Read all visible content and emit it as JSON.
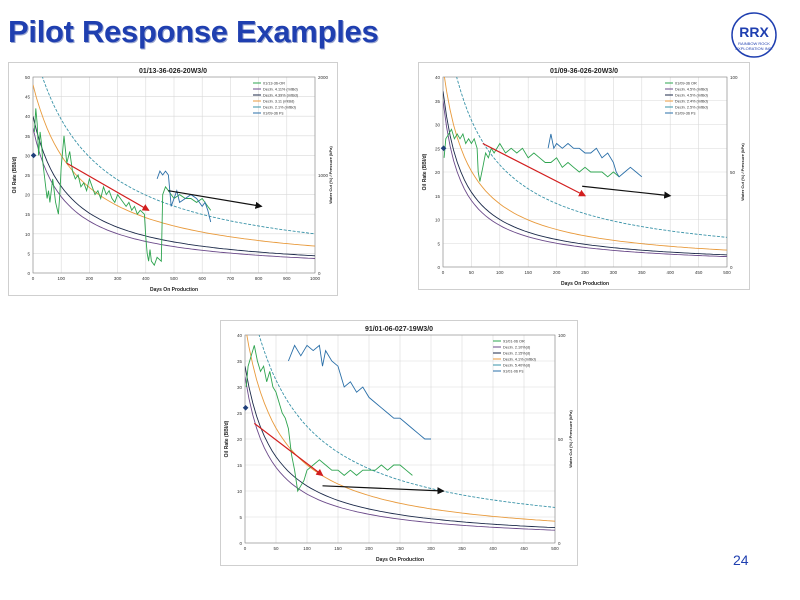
{
  "slide": {
    "title": "Pilot Response Examples",
    "page_number": "24",
    "logo": {
      "line1": "RRX",
      "line2": "RAINBOW ROCK",
      "line3": "EXPLORATION INC."
    }
  },
  "colors": {
    "title": "#1f3fb0",
    "oil_rate": "#2ea44f",
    "pressure": "#2a6fa8",
    "decline_navy": "#1c2a4a",
    "decline_purple": "#6b4a8a",
    "decline_orange": "#e89a3c",
    "decline_teal": "#3a93a8",
    "arrow_red": "#d21e1e",
    "arrow_black": "#111111"
  },
  "chart_data": [
    {
      "type": "line",
      "title": "01/13-36-026-20W3/0",
      "xlabel": "Days On Production",
      "ylabel": "Oil Rate (BBl/d)",
      "y2label": "Water Cut (%) / Pressure (kPa)",
      "xlim": [
        0,
        1000
      ],
      "ylim": [
        0,
        50
      ],
      "y2lim": [
        0,
        2000
      ],
      "xticks": [
        "0",
        "100",
        "200",
        "300",
        "400",
        "500",
        "600",
        "700",
        "800",
        "900",
        "1000"
      ],
      "yticks": [
        "0",
        "5",
        "10",
        "15",
        "20",
        "25",
        "30",
        "35",
        "40",
        "45",
        "50"
      ],
      "y2ticks": [
        "0",
        "1000",
        "2000"
      ],
      "legend": [
        "01/13-36-OR",
        "Decln. 4.11% (mtBd)",
        "Decln. 4.39% (mtBd)",
        "Decln. 3.11 (mtBd)",
        "Decln. 2.1% (mtBd)",
        "01/09-36 Ps"
      ],
      "decline_curves": [
        {
          "color": "decline_purple",
          "q0": 37,
          "b": 0.03
        },
        {
          "color": "decline_navy",
          "q0": 40,
          "b": 0.027
        },
        {
          "color": "decline_orange",
          "q0": 48,
          "b": 0.02
        },
        {
          "color": "decline_teal",
          "q0": 58,
          "b": 0.016
        }
      ],
      "oil_rate": [
        [
          5,
          36
        ],
        [
          10,
          42
        ],
        [
          15,
          38
        ],
        [
          20,
          30
        ],
        [
          25,
          36
        ],
        [
          30,
          33
        ],
        [
          35,
          28
        ],
        [
          40,
          25
        ],
        [
          45,
          22
        ],
        [
          50,
          19
        ],
        [
          55,
          21
        ],
        [
          60,
          18
        ],
        [
          70,
          24
        ],
        [
          80,
          18
        ],
        [
          90,
          15
        ],
        [
          95,
          20
        ],
        [
          100,
          27
        ],
        [
          110,
          35
        ],
        [
          120,
          28
        ],
        [
          130,
          31
        ],
        [
          140,
          26
        ],
        [
          150,
          24
        ],
        [
          160,
          25
        ],
        [
          170,
          22
        ],
        [
          180,
          23
        ],
        [
          190,
          21
        ],
        [
          200,
          24
        ],
        [
          210,
          22
        ],
        [
          220,
          20
        ],
        [
          230,
          21
        ],
        [
          240,
          19
        ],
        [
          250,
          22
        ],
        [
          260,
          20
        ],
        [
          270,
          21
        ],
        [
          280,
          19
        ],
        [
          290,
          18
        ],
        [
          300,
          20
        ],
        [
          310,
          19
        ],
        [
          320,
          18
        ],
        [
          330,
          17
        ],
        [
          340,
          18
        ],
        [
          350,
          16
        ],
        [
          360,
          17
        ],
        [
          370,
          15
        ],
        [
          380,
          16
        ],
        [
          395,
          15
        ],
        [
          400,
          9
        ],
        [
          405,
          5
        ],
        [
          410,
          3
        ],
        [
          415,
          6
        ],
        [
          420,
          3
        ],
        [
          430,
          2
        ],
        [
          440,
          4
        ],
        [
          455,
          3
        ],
        [
          460,
          20
        ],
        [
          470,
          22
        ],
        [
          480,
          21
        ],
        [
          490,
          20
        ],
        [
          500,
          19
        ],
        [
          520,
          20
        ],
        [
          540,
          19
        ],
        [
          560,
          19
        ],
        [
          580,
          18
        ],
        [
          600,
          19
        ],
        [
          620,
          17
        ],
        [
          630,
          16
        ]
      ],
      "pressure": [
        [
          440,
          24
        ],
        [
          450,
          26
        ],
        [
          460,
          25
        ],
        [
          470,
          26
        ],
        [
          480,
          25
        ],
        [
          490,
          17
        ],
        [
          500,
          19
        ],
        [
          510,
          21
        ],
        [
          520,
          18
        ],
        [
          540,
          19
        ],
        [
          560,
          20
        ],
        [
          580,
          19
        ],
        [
          600,
          17
        ],
        [
          610,
          18
        ],
        [
          620,
          16
        ],
        [
          630,
          13
        ]
      ],
      "start_marker": [
        2,
        30
      ],
      "arrows": [
        {
          "color": "arrow_red",
          "from": [
            120,
            28
          ],
          "to": [
            410,
            16
          ]
        },
        {
          "color": "arrow_black",
          "from": [
            480,
            21
          ],
          "to": [
            810,
            17
          ]
        }
      ]
    },
    {
      "type": "line",
      "title": "01/09-36-026-20W3/0",
      "xlabel": "Days On Production",
      "ylabel": "Oil Rate (BBl/d)",
      "y2label": "Water Cut (%) / Pressure (kPa)",
      "xlim": [
        0,
        500
      ],
      "ylim": [
        0,
        40
      ],
      "y2lim": [
        0,
        100
      ],
      "xticks": [
        "0",
        "50",
        "100",
        "150",
        "200",
        "250",
        "300",
        "350",
        "400",
        "450",
        "500"
      ],
      "yticks": [
        "0",
        "5",
        "10",
        "15",
        "20",
        "25",
        "30",
        "35",
        "40"
      ],
      "y2ticks": [
        "0",
        "50",
        "100"
      ],
      "legend": [
        "01/09-36 OR",
        "Decln. 4.5% (mtBd)",
        "Decln. 4.5% (mtBd)",
        "Decln. 2.4% (mtBd)",
        "Decln. 2.5% (mtBd)",
        "01/09-36 Ps"
      ],
      "decline_curves": [
        {
          "color": "decline_purple",
          "q0": 35,
          "b": 0.05
        },
        {
          "color": "decline_navy",
          "q0": 37,
          "b": 0.045
        },
        {
          "color": "decline_orange",
          "q0": 42,
          "b": 0.036
        },
        {
          "color": "decline_teal",
          "q0": 55,
          "b": 0.026
        }
      ],
      "oil_rate": [
        [
          2,
          23
        ],
        [
          5,
          27
        ],
        [
          10,
          28
        ],
        [
          15,
          29
        ],
        [
          20,
          27
        ],
        [
          25,
          28
        ],
        [
          30,
          27
        ],
        [
          35,
          28
        ],
        [
          40,
          26
        ],
        [
          45,
          27
        ],
        [
          50,
          26
        ],
        [
          55,
          27
        ],
        [
          60,
          25
        ],
        [
          62,
          20
        ],
        [
          65,
          18
        ],
        [
          70,
          21
        ],
        [
          75,
          24
        ],
        [
          80,
          23
        ],
        [
          85,
          25
        ],
        [
          90,
          24
        ],
        [
          100,
          26
        ],
        [
          110,
          24
        ],
        [
          120,
          25
        ],
        [
          130,
          24
        ],
        [
          140,
          25
        ],
        [
          150,
          23
        ],
        [
          160,
          24
        ],
        [
          170,
          23
        ],
        [
          180,
          22
        ],
        [
          190,
          22
        ],
        [
          200,
          23
        ],
        [
          210,
          21
        ],
        [
          220,
          22
        ],
        [
          230,
          21
        ],
        [
          240,
          20
        ],
        [
          250,
          21
        ],
        [
          260,
          20
        ],
        [
          270,
          20
        ],
        [
          280,
          20
        ],
        [
          290,
          19
        ],
        [
          300,
          20
        ],
        [
          310,
          19
        ]
      ],
      "pressure": [
        [
          185,
          25
        ],
        [
          190,
          28
        ],
        [
          195,
          25
        ],
        [
          200,
          26
        ],
        [
          210,
          25
        ],
        [
          220,
          26
        ],
        [
          230,
          25
        ],
        [
          240,
          25
        ],
        [
          250,
          24
        ],
        [
          260,
          24
        ],
        [
          270,
          25
        ],
        [
          280,
          23
        ],
        [
          290,
          24
        ],
        [
          300,
          22
        ],
        [
          305,
          20
        ],
        [
          310,
          19
        ],
        [
          320,
          20
        ],
        [
          330,
          21
        ],
        [
          340,
          20
        ],
        [
          350,
          19
        ]
      ],
      "start_marker": [
        1,
        25
      ],
      "arrows": [
        {
          "color": "arrow_red",
          "from": [
            70,
            26
          ],
          "to": [
            250,
            15
          ]
        },
        {
          "color": "arrow_black",
          "from": [
            245,
            17
          ],
          "to": [
            400,
            15
          ]
        }
      ]
    },
    {
      "type": "line",
      "title": "91/01-06-027-19W3/0",
      "xlabel": "Days On Production",
      "ylabel": "Oil Rate (BBl/d)",
      "y2label": "Water Cut (%) / Pressure (kPa)",
      "xlim": [
        0,
        500
      ],
      "ylim": [
        0,
        40
      ],
      "y2lim": [
        0,
        100
      ],
      "xticks": [
        "0",
        "50",
        "100",
        "150",
        "200",
        "250",
        "300",
        "350",
        "400",
        "450",
        "500"
      ],
      "yticks": [
        "0",
        "5",
        "10",
        "15",
        "20",
        "25",
        "30",
        "35",
        "40"
      ],
      "y2ticks": [
        "0",
        "50",
        "100"
      ],
      "legend": [
        "91/01-06 OR",
        "Decln. 2.10%(d)",
        "Decln. 2.15%(d)",
        "Decln. 4.1% (mtBd)",
        "Decln. 5.40%(d)",
        "91/01-06 Ps"
      ],
      "decline_curves": [
        {
          "color": "decline_purple",
          "q0": 32,
          "b": 0.04
        },
        {
          "color": "decline_navy",
          "q0": 34,
          "b": 0.035
        },
        {
          "color": "decline_orange",
          "q0": 42,
          "b": 0.03
        },
        {
          "color": "decline_teal",
          "q0": 52,
          "b": 0.022
        }
      ],
      "oil_rate": [
        [
          2,
          30
        ],
        [
          5,
          34
        ],
        [
          10,
          36
        ],
        [
          15,
          38
        ],
        [
          20,
          35
        ],
        [
          25,
          33
        ],
        [
          30,
          34
        ],
        [
          35,
          31
        ],
        [
          40,
          33
        ],
        [
          45,
          30
        ],
        [
          50,
          29
        ],
        [
          55,
          27
        ],
        [
          60,
          25
        ],
        [
          65,
          24
        ],
        [
          70,
          22
        ],
        [
          75,
          17
        ],
        [
          80,
          14
        ],
        [
          85,
          10
        ],
        [
          90,
          11
        ],
        [
          95,
          12
        ],
        [
          100,
          14
        ],
        [
          110,
          15
        ],
        [
          120,
          16
        ],
        [
          130,
          15
        ],
        [
          140,
          14
        ],
        [
          150,
          14
        ],
        [
          160,
          13
        ],
        [
          170,
          14
        ],
        [
          180,
          13
        ],
        [
          190,
          14
        ],
        [
          200,
          14
        ],
        [
          210,
          14
        ],
        [
          220,
          15
        ],
        [
          230,
          14
        ],
        [
          240,
          15
        ],
        [
          250,
          15
        ],
        [
          260,
          14
        ],
        [
          270,
          13
        ]
      ],
      "pressure": [
        [
          70,
          35
        ],
        [
          80,
          38
        ],
        [
          90,
          36
        ],
        [
          100,
          38
        ],
        [
          110,
          37
        ],
        [
          120,
          38
        ],
        [
          125,
          34
        ],
        [
          130,
          37
        ],
        [
          140,
          35
        ],
        [
          150,
          34
        ],
        [
          160,
          30
        ],
        [
          170,
          31
        ],
        [
          180,
          29
        ],
        [
          190,
          30
        ],
        [
          200,
          28
        ],
        [
          210,
          27
        ],
        [
          220,
          26
        ],
        [
          230,
          25
        ],
        [
          240,
          24
        ],
        [
          250,
          24
        ],
        [
          260,
          23
        ],
        [
          270,
          22
        ],
        [
          280,
          21
        ],
        [
          290,
          20
        ],
        [
          300,
          20
        ]
      ],
      "start_marker": [
        1,
        26
      ],
      "arrows": [
        {
          "color": "arrow_red",
          "from": [
            15,
            23
          ],
          "to": [
            125,
            13
          ]
        },
        {
          "color": "arrow_black",
          "from": [
            125,
            11
          ],
          "to": [
            320,
            10
          ]
        }
      ]
    }
  ]
}
